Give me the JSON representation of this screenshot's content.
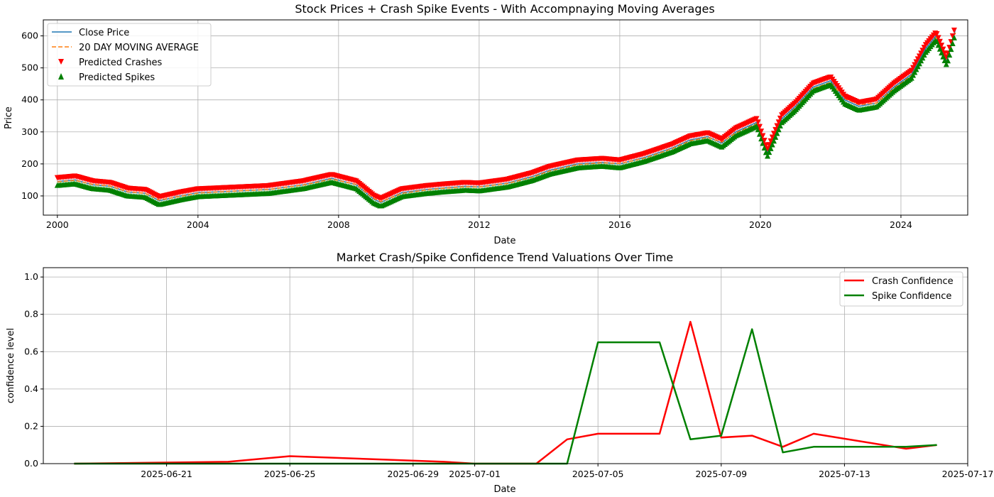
{
  "chart_data": [
    {
      "type": "line",
      "title": "Stock Prices + Crash Spike Events - With Accompnaying Moving Averages",
      "xlabel": "Date",
      "ylabel": "Price",
      "xlim": [
        1999.6,
        2025.9
      ],
      "ylim": [
        40,
        650
      ],
      "grid": true,
      "legend_position": "top-left",
      "x_ticks": [
        {
          "value": 2000,
          "label": "2000"
        },
        {
          "value": 2004,
          "label": "2004"
        },
        {
          "value": 2008,
          "label": "2008"
        },
        {
          "value": 2012,
          "label": "2012"
        },
        {
          "value": 2016,
          "label": "2016"
        },
        {
          "value": 2020,
          "label": "2020"
        },
        {
          "value": 2024,
          "label": "2024"
        }
      ],
      "y_ticks": [
        100,
        200,
        300,
        400,
        500,
        600
      ],
      "colors": {
        "close": "#1f77b4",
        "ma": "#ff7f0e",
        "crash": "#ff0000",
        "spike": "#008000"
      },
      "legend": [
        "Close Price",
        "20 DAY MOVING AVERAGE",
        "Predicted Crashes",
        "Predicted Spikes"
      ],
      "series": [
        {
          "name": "Close Price",
          "x": [
            2000.0,
            2000.5,
            2001.0,
            2001.5,
            2002.0,
            2002.5,
            2002.9,
            2003.5,
            2004.0,
            2005.0,
            2006.0,
            2007.0,
            2007.8,
            2008.5,
            2009.0,
            2009.2,
            2009.8,
            2010.5,
            2011.0,
            2011.6,
            2012.0,
            2012.8,
            2013.5,
            2014.0,
            2014.8,
            2015.5,
            2016.0,
            2016.7,
            2017.5,
            2018.0,
            2018.5,
            2018.9,
            2019.3,
            2019.9,
            2020.2,
            2020.6,
            2021.0,
            2021.5,
            2022.0,
            2022.4,
            2022.8,
            2023.3,
            2023.8,
            2024.3,
            2024.7,
            2025.0,
            2025.3,
            2025.55
          ],
          "values": [
            145,
            150,
            135,
            130,
            112,
            108,
            85,
            100,
            110,
            115,
            120,
            135,
            155,
            135,
            90,
            80,
            110,
            120,
            125,
            130,
            128,
            140,
            160,
            180,
            200,
            205,
            200,
            220,
            250,
            275,
            285,
            265,
            300,
            330,
            235,
            340,
            380,
            440,
            460,
            400,
            380,
            390,
            440,
            480,
            560,
            600,
            520,
            620
          ]
        },
        {
          "name": "20 DAY MOVING AVERAGE",
          "x": [
            2000.0,
            2000.5,
            2001.0,
            2001.5,
            2002.0,
            2002.5,
            2002.9,
            2003.5,
            2004.0,
            2005.0,
            2006.0,
            2007.0,
            2007.8,
            2008.5,
            2009.0,
            2009.2,
            2009.8,
            2010.5,
            2011.0,
            2011.6,
            2012.0,
            2012.8,
            2013.5,
            2014.0,
            2014.8,
            2015.5,
            2016.0,
            2016.7,
            2017.5,
            2018.0,
            2018.5,
            2018.9,
            2019.3,
            2019.9,
            2020.2,
            2020.6,
            2021.0,
            2021.5,
            2022.0,
            2022.4,
            2022.8,
            2023.3,
            2023.8,
            2024.3,
            2024.7,
            2025.0,
            2025.3,
            2025.55
          ],
          "values": [
            144,
            149,
            136,
            131,
            113,
            108,
            87,
            99,
            109,
            115,
            120,
            134,
            153,
            136,
            92,
            82,
            108,
            119,
            124,
            129,
            128,
            139,
            158,
            178,
            198,
            204,
            201,
            218,
            248,
            272,
            283,
            268,
            297,
            326,
            245,
            330,
            376,
            435,
            455,
            405,
            385,
            390,
            436,
            476,
            553,
            595,
            530,
            610
          ]
        }
      ]
    },
    {
      "type": "line",
      "title": "Market Crash/Spike Confidence Trend Valuations Over Time",
      "xlabel": "Date",
      "ylabel": "confidence level",
      "xlim": [
        "2025-06-17",
        "2025-07-17"
      ],
      "ylim": [
        0,
        1.05
      ],
      "grid": true,
      "legend_position": "top-right",
      "x_ticks": [
        "2025-06-21",
        "2025-06-25",
        "2025-06-29",
        "2025-07-01",
        "2025-07-05",
        "2025-07-09",
        "2025-07-13",
        "2025-07-17"
      ],
      "y_ticks": [
        "0.0",
        "0.2",
        "0.4",
        "0.6",
        "0.8",
        "1.0"
      ],
      "series": [
        {
          "name": "Crash Confidence",
          "color": "#ff0000",
          "x": [
            "2025-06-18",
            "2025-06-23",
            "2025-06-25",
            "2025-06-30",
            "2025-07-01",
            "2025-07-03",
            "2025-07-04",
            "2025-07-05",
            "2025-07-07",
            "2025-07-08",
            "2025-07-09",
            "2025-07-10",
            "2025-07-11",
            "2025-07-12",
            "2025-07-15",
            "2025-07-16"
          ],
          "values": [
            0.0,
            0.01,
            0.04,
            0.01,
            0.0,
            0.0,
            0.13,
            0.16,
            0.16,
            0.76,
            0.14,
            0.15,
            0.09,
            0.16,
            0.08,
            0.1
          ]
        },
        {
          "name": "Spike Confidence",
          "color": "#008000",
          "x": [
            "2025-06-18",
            "2025-06-23",
            "2025-06-25",
            "2025-06-30",
            "2025-07-01",
            "2025-07-03",
            "2025-07-04",
            "2025-07-05",
            "2025-07-07",
            "2025-07-08",
            "2025-07-09",
            "2025-07-10",
            "2025-07-11",
            "2025-07-12",
            "2025-07-15",
            "2025-07-16"
          ],
          "values": [
            0.0,
            0.0,
            0.0,
            0.0,
            0.0,
            0.0,
            0.0,
            0.65,
            0.65,
            0.13,
            0.15,
            0.72,
            0.06,
            0.09,
            0.09,
            0.1
          ]
        }
      ]
    }
  ]
}
